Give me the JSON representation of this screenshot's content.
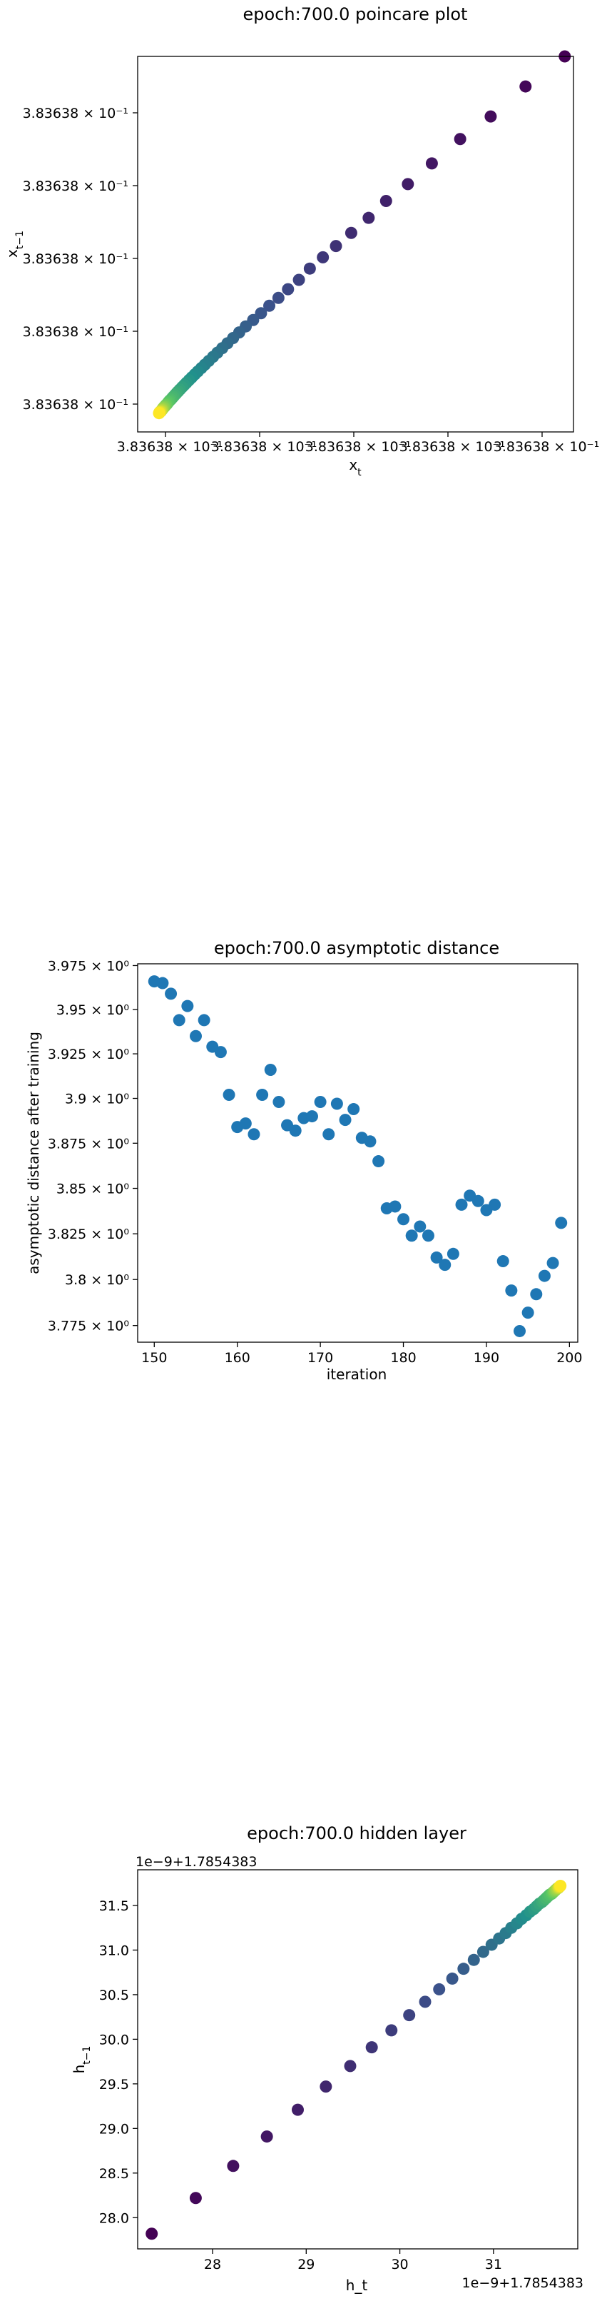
{
  "charts": [
    {
      "title": "epoch:700.0 poincare plot",
      "xlabel": "x_t",
      "ylabel": "x_{t-1}",
      "xticks": [
        "3.83638 × 10⁻¹",
        "3.83638 × 10⁻¹",
        "3.83638 × 10⁻¹",
        "3.83638 × 10⁻¹",
        "3.83638 × 10⁻¹"
      ],
      "yticks": [
        "3.83638 × 10⁻¹",
        "3.83638 × 10⁻¹",
        "3.83638 × 10⁻¹",
        "3.83638 × 10⁻¹",
        "3.83638 × 10⁻¹"
      ]
    },
    {
      "title": "epoch:700.0 asymptotic distance",
      "xlabel": "iteration",
      "ylabel": "asymptotic distance after training",
      "xticks": [
        "150",
        "160",
        "170",
        "180",
        "190",
        "200"
      ],
      "yticks": [
        "3.975 × 10⁰",
        "3.95 × 10⁰",
        "3.925 × 10⁰",
        "3.9 × 10⁰",
        "3.875 × 10⁰",
        "3.85 × 10⁰",
        "3.825 × 10⁰",
        "3.8 × 10⁰",
        "3.775 × 10⁰"
      ]
    },
    {
      "title": "epoch:700.0 hidden layer",
      "xlabel": "h_t",
      "ylabel": "h_{t-1}",
      "offset_x": "1e−9+1.7854383",
      "offset_y": "1e−9+1.7854383",
      "xticks": [
        "28",
        "29",
        "30",
        "31"
      ],
      "yticks": [
        "28.0",
        "28.5",
        "29.0",
        "29.5",
        "30.0",
        "30.5",
        "31.0",
        "31.5"
      ]
    }
  ],
  "chart_data": [
    {
      "type": "scatter",
      "title": "epoch:700.0 poincare plot",
      "xlabel": "x_t",
      "ylabel": "x_{t-1}",
      "yscale": "log",
      "grid": false,
      "colormap": "viridis",
      "points": [
        [
          0.98,
          1.0
        ],
        [
          0.89,
          0.92
        ],
        [
          0.81,
          0.84
        ],
        [
          0.74,
          0.78
        ],
        [
          0.675,
          0.715
        ],
        [
          0.62,
          0.66
        ],
        [
          0.57,
          0.615
        ],
        [
          0.53,
          0.57
        ],
        [
          0.49,
          0.53
        ],
        [
          0.455,
          0.495
        ],
        [
          0.425,
          0.465
        ],
        [
          0.395,
          0.435
        ],
        [
          0.37,
          0.405
        ],
        [
          0.345,
          0.38
        ],
        [
          0.323,
          0.357
        ],
        [
          0.302,
          0.336
        ],
        [
          0.283,
          0.316
        ],
        [
          0.265,
          0.298
        ],
        [
          0.248,
          0.281
        ],
        [
          0.233,
          0.265
        ],
        [
          0.219,
          0.25
        ],
        [
          0.206,
          0.236
        ],
        [
          0.194,
          0.223
        ],
        [
          0.183,
          0.211
        ],
        [
          0.173,
          0.2
        ],
        [
          0.163,
          0.189
        ],
        [
          0.154,
          0.179
        ],
        [
          0.146,
          0.17
        ],
        [
          0.138,
          0.161
        ],
        [
          0.131,
          0.153
        ],
        [
          0.124,
          0.145
        ],
        [
          0.118,
          0.138
        ],
        [
          0.112,
          0.131
        ],
        [
          0.107,
          0.125
        ],
        [
          0.102,
          0.119
        ],
        [
          0.097,
          0.113
        ],
        [
          0.093,
          0.108
        ],
        [
          0.089,
          0.103
        ],
        [
          0.085,
          0.098
        ],
        [
          0.082,
          0.094
        ],
        [
          0.079,
          0.09
        ],
        [
          0.076,
          0.086
        ],
        [
          0.073,
          0.083
        ],
        [
          0.071,
          0.08
        ],
        [
          0.069,
          0.077
        ],
        [
          0.067,
          0.074
        ],
        [
          0.065,
          0.072
        ],
        [
          0.063,
          0.069
        ],
        [
          0.061,
          0.067
        ],
        [
          0.06,
          0.065
        ],
        [
          0.058,
          0.063
        ],
        [
          0.057,
          0.061
        ],
        [
          0.056,
          0.059
        ],
        [
          0.055,
          0.058
        ],
        [
          0.054,
          0.056
        ],
        [
          0.053,
          0.055
        ],
        [
          0.052,
          0.054
        ],
        [
          0.051,
          0.053
        ],
        [
          0.05,
          0.052
        ],
        [
          0.05,
          0.051
        ],
        [
          0.049,
          0.05
        ]
      ]
    },
    {
      "type": "scatter",
      "title": "epoch:700.0 asymptotic distance",
      "xlabel": "iteration",
      "ylabel": "asymptotic distance after training",
      "yscale": "log",
      "xlim": [
        148,
        201
      ],
      "ylim": [
        3.766,
        3.976
      ],
      "grid": false,
      "color": "#1f77b4",
      "x": [
        150,
        151,
        152,
        153,
        154,
        155,
        156,
        157,
        158,
        159,
        160,
        161,
        162,
        163,
        164,
        165,
        166,
        167,
        168,
        169,
        170,
        171,
        172,
        173,
        174,
        175,
        176,
        177,
        178,
        179,
        180,
        181,
        182,
        183,
        184,
        185,
        186,
        187,
        188,
        189,
        190,
        191,
        192,
        193,
        194,
        195,
        196,
        197,
        198,
        199
      ],
      "y": [
        3.966,
        3.965,
        3.959,
        3.944,
        3.952,
        3.935,
        3.944,
        3.929,
        3.926,
        3.902,
        3.884,
        3.886,
        3.88,
        3.902,
        3.916,
        3.898,
        3.885,
        3.882,
        3.889,
        3.89,
        3.898,
        3.88,
        3.897,
        3.888,
        3.894,
        3.878,
        3.876,
        3.865,
        3.839,
        3.84,
        3.833,
        3.824,
        3.829,
        3.824,
        3.812,
        3.808,
        3.814,
        3.841,
        3.846,
        3.843,
        3.838,
        3.841,
        3.81,
        3.794,
        3.772,
        3.782,
        3.792,
        3.802,
        3.809,
        3.831
      ]
    },
    {
      "type": "scatter",
      "title": "epoch:700.0 hidden layer",
      "xlabel": "h_t",
      "ylabel": "h_{t-1}",
      "axis_offset": "1e−9+1.7854383",
      "xlim": [
        27.2,
        31.9
      ],
      "ylim": [
        27.65,
        31.9
      ],
      "grid": false,
      "colormap": "viridis",
      "points": [
        [
          27.35,
          27.82
        ],
        [
          27.82,
          28.22
        ],
        [
          28.22,
          28.58
        ],
        [
          28.58,
          28.91
        ],
        [
          28.91,
          29.21
        ],
        [
          29.21,
          29.47
        ],
        [
          29.47,
          29.7
        ],
        [
          29.7,
          29.91
        ],
        [
          29.91,
          30.1
        ],
        [
          30.1,
          30.27
        ],
        [
          30.27,
          30.42
        ],
        [
          30.42,
          30.56
        ],
        [
          30.56,
          30.68
        ],
        [
          30.68,
          30.79
        ],
        [
          30.79,
          30.89
        ],
        [
          30.89,
          30.98
        ],
        [
          30.98,
          31.06
        ],
        [
          31.06,
          31.13
        ],
        [
          31.13,
          31.19
        ],
        [
          31.19,
          31.25
        ],
        [
          31.25,
          31.3
        ],
        [
          31.3,
          31.35
        ],
        [
          31.35,
          31.39
        ],
        [
          31.39,
          31.43
        ],
        [
          31.43,
          31.46
        ],
        [
          31.46,
          31.49
        ],
        [
          31.49,
          31.52
        ],
        [
          31.52,
          31.54
        ],
        [
          31.54,
          31.56
        ],
        [
          31.56,
          31.58
        ],
        [
          31.58,
          31.6
        ],
        [
          31.6,
          31.62
        ],
        [
          31.62,
          31.63
        ],
        [
          31.63,
          31.64
        ],
        [
          31.64,
          31.65
        ],
        [
          31.65,
          31.66
        ],
        [
          31.66,
          31.67
        ],
        [
          31.67,
          31.68
        ],
        [
          31.68,
          31.69
        ],
        [
          31.69,
          31.695
        ],
        [
          31.695,
          31.7
        ],
        [
          31.7,
          31.705
        ],
        [
          31.705,
          31.71
        ],
        [
          31.71,
          31.715
        ],
        [
          31.715,
          31.72
        ]
      ]
    }
  ]
}
